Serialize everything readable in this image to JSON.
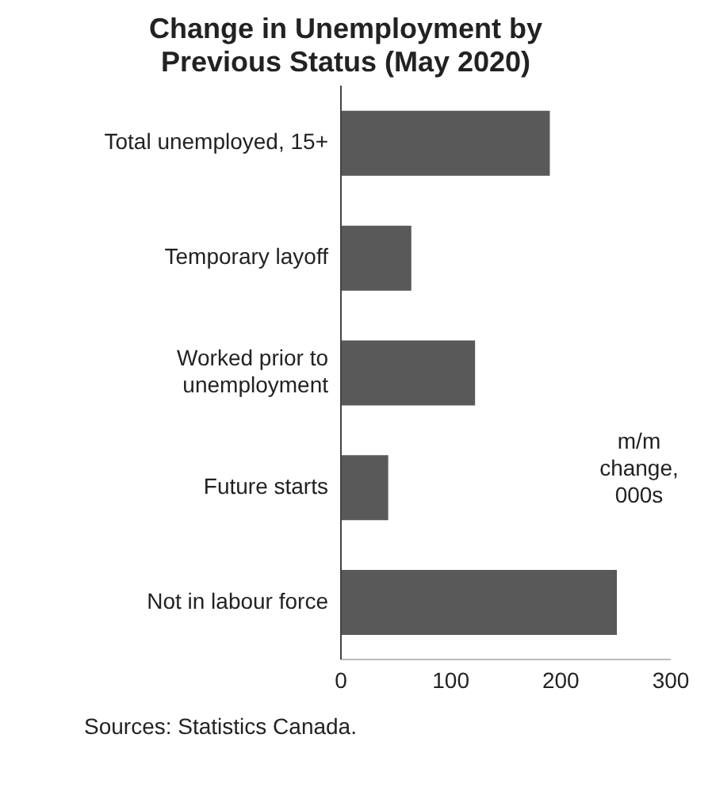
{
  "chart_data": {
    "type": "bar",
    "orientation": "horizontal",
    "title": "Change in Unemployment by Previous Status (May 2020)",
    "categories": [
      "Total unemployed, 15+",
      "Temporary layoff",
      "Worked prior to unemployment",
      "Future starts",
      "Not in labour force"
    ],
    "values": [
      190,
      64,
      122,
      43,
      251
    ],
    "color": "#595959",
    "xlim": [
      0,
      300
    ],
    "xticks": [
      0,
      100,
      200,
      300
    ],
    "grid": false,
    "annotations": [
      "m/m change, 000s",
      "Sources: Statistics Canada."
    ]
  }
}
